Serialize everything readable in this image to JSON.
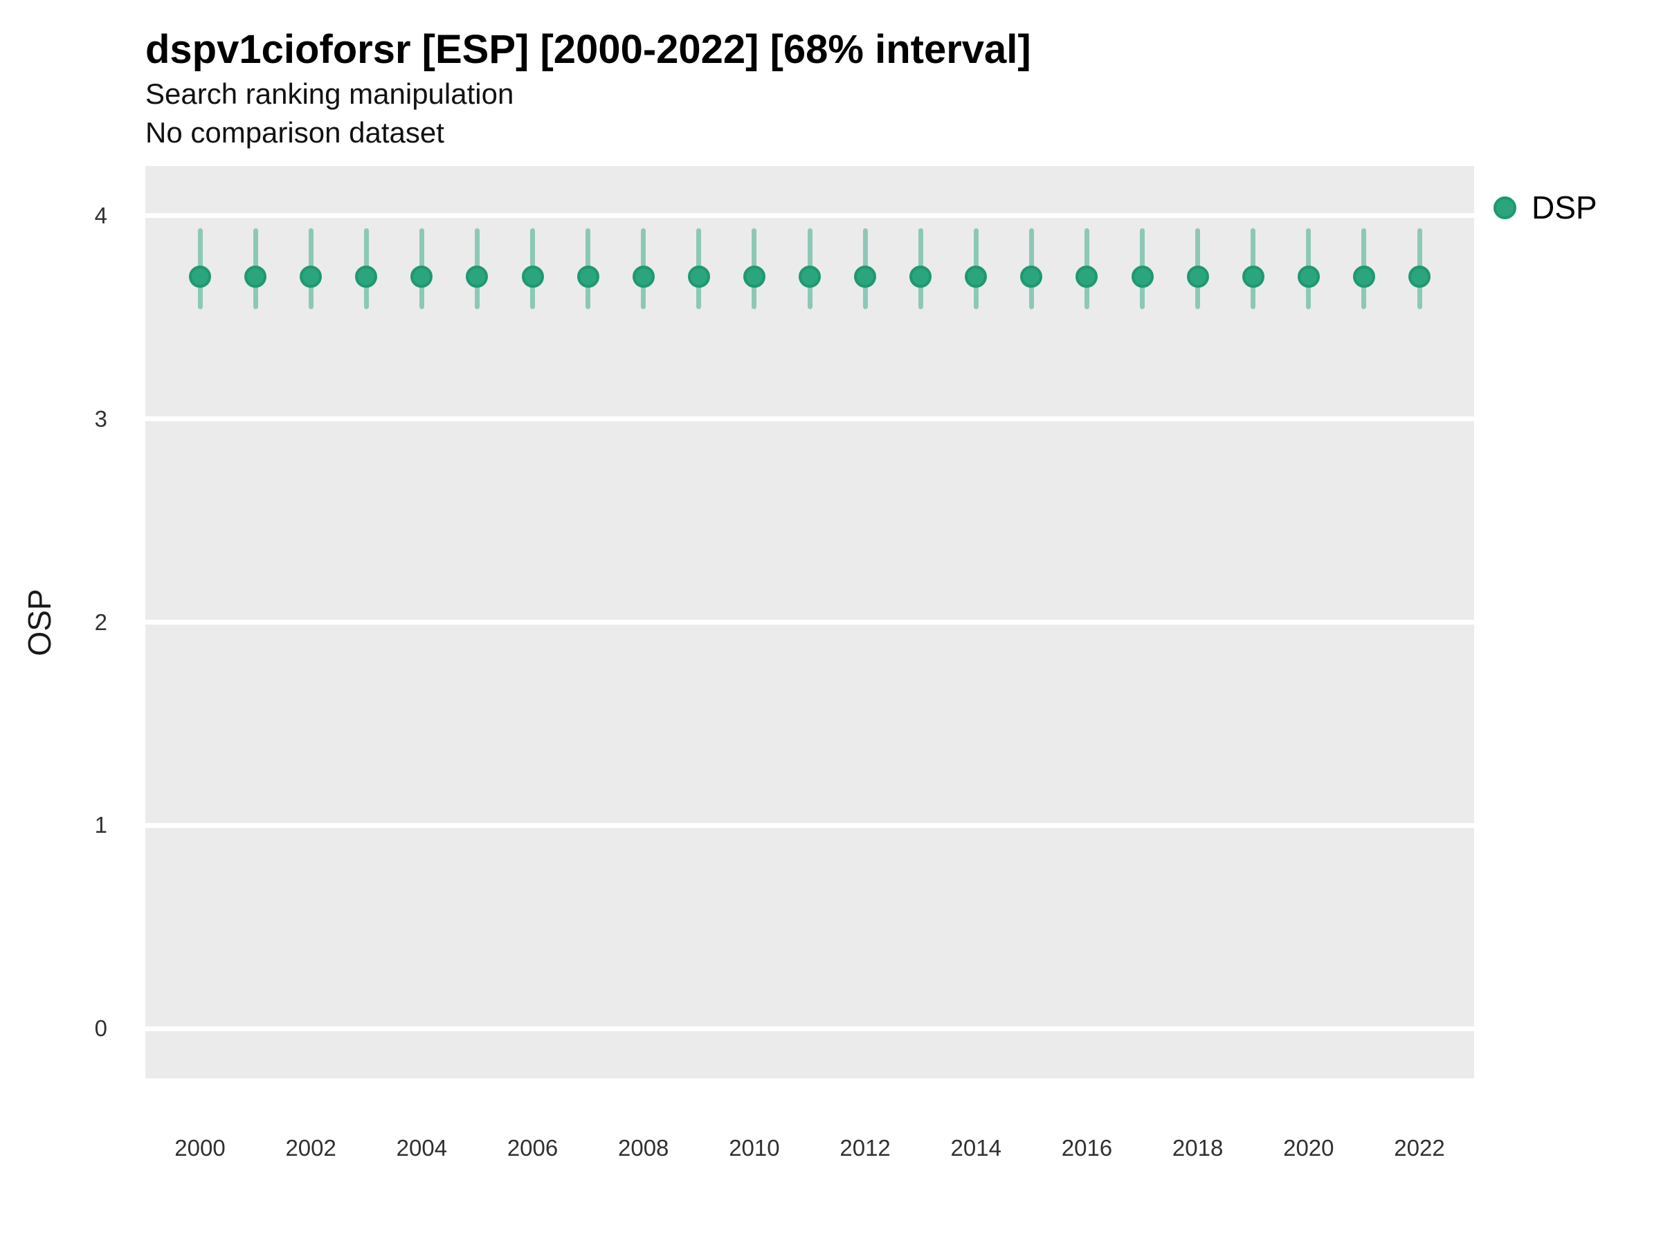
{
  "figure": {
    "title": "dspv1cioforsr [ESP] [2000-2022] [68% interval]",
    "subtitle_line1": "Search ranking manipulation",
    "subtitle_line2": "No comparison dataset"
  },
  "legend": {
    "position": "right",
    "items": [
      {
        "label": "DSP",
        "fill": "#2ba57d",
        "edge": "#1f9870"
      }
    ]
  },
  "chart_data": {
    "type": "pointrange",
    "title": "dspv1cioforsr [ESP] [2000-2022] [68% interval]",
    "subtitle": [
      "Search ranking manipulation",
      "No comparison dataset"
    ],
    "interval_level": "68%",
    "xlabel": "",
    "ylabel": "OSP",
    "x": [
      2000,
      2001,
      2002,
      2003,
      2004,
      2005,
      2006,
      2007,
      2008,
      2009,
      2010,
      2011,
      2012,
      2013,
      2014,
      2015,
      2016,
      2017,
      2018,
      2019,
      2020,
      2021,
      2022
    ],
    "series": [
      {
        "name": "DSP",
        "estimate": [
          3.7,
          3.7,
          3.7,
          3.7,
          3.7,
          3.7,
          3.7,
          3.7,
          3.7,
          3.7,
          3.7,
          3.7,
          3.7,
          3.7,
          3.7,
          3.7,
          3.7,
          3.7,
          3.7,
          3.7,
          3.7,
          3.7,
          3.7
        ],
        "lower": [
          3.54,
          3.54,
          3.54,
          3.54,
          3.54,
          3.54,
          3.54,
          3.54,
          3.54,
          3.54,
          3.54,
          3.54,
          3.54,
          3.54,
          3.54,
          3.54,
          3.54,
          3.54,
          3.54,
          3.54,
          3.54,
          3.54,
          3.54
        ],
        "upper": [
          3.94,
          3.94,
          3.94,
          3.94,
          3.94,
          3.94,
          3.94,
          3.94,
          3.94,
          3.94,
          3.94,
          3.94,
          3.94,
          3.94,
          3.94,
          3.94,
          3.94,
          3.94,
          3.94,
          3.94,
          3.94,
          3.94,
          3.94
        ]
      }
    ],
    "ylim": [
      -0.245,
      4.245
    ],
    "yticks": [
      0,
      1,
      2,
      3,
      4
    ],
    "xticks": [
      2000,
      2002,
      2004,
      2006,
      2008,
      2010,
      2012,
      2014,
      2016,
      2018,
      2020,
      2022
    ],
    "grid": {
      "horizontal_major": true,
      "vertical": false,
      "minor": false,
      "color": "#ffffff"
    },
    "legend_position": "right",
    "colors": {
      "panel_bg": "#ebebeb",
      "point_fill": "#2ba57d",
      "point_edge": "#1f9870",
      "range_line": "rgba(27,158,119,0.45)",
      "title_text": "#000000",
      "tick_text": "#303030"
    }
  }
}
